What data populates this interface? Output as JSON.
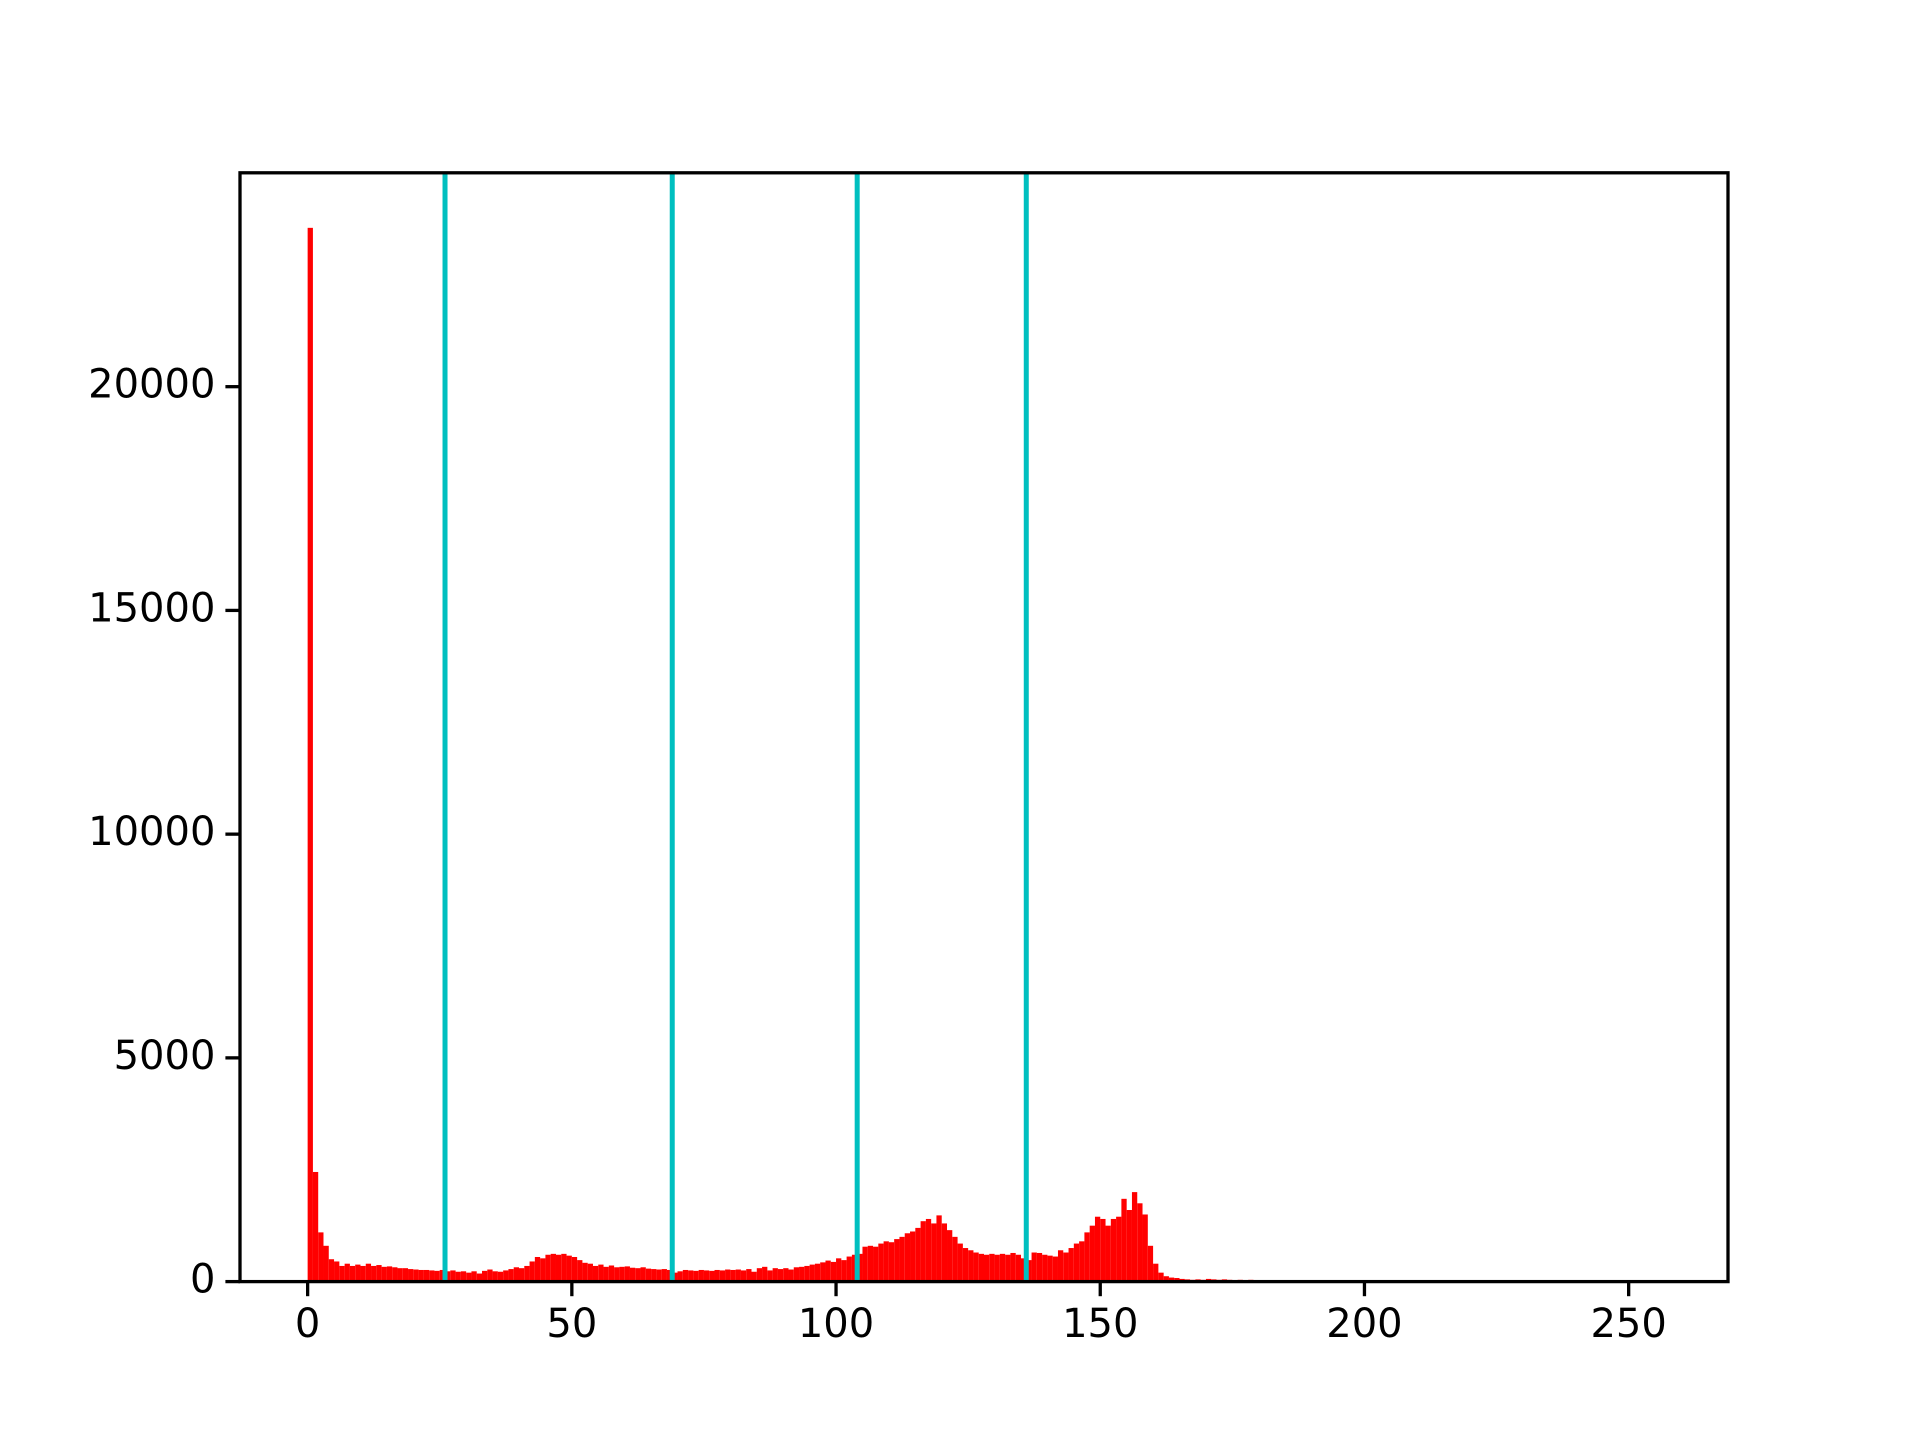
{
  "chart_data": {
    "type": "histogram",
    "bins": [
      0,
      1,
      2,
      3,
      4,
      5,
      6,
      7,
      8,
      9,
      10,
      11,
      12,
      13,
      14,
      15,
      16,
      17,
      18,
      19,
      20,
      21,
      22,
      23,
      24,
      25,
      26,
      27,
      28,
      29,
      30,
      31,
      32,
      33,
      34,
      35,
      36,
      37,
      38,
      39,
      40,
      41,
      42,
      43,
      44,
      45,
      46,
      47,
      48,
      49,
      50,
      51,
      52,
      53,
      54,
      55,
      56,
      57,
      58,
      59,
      60,
      61,
      62,
      63,
      64,
      65,
      66,
      67,
      68,
      69,
      70,
      71,
      72,
      73,
      74,
      75,
      76,
      77,
      78,
      79,
      80,
      81,
      82,
      83,
      84,
      85,
      86,
      87,
      88,
      89,
      90,
      91,
      92,
      93,
      94,
      95,
      96,
      97,
      98,
      99,
      100,
      101,
      102,
      103,
      104,
      105,
      106,
      107,
      108,
      109,
      110,
      111,
      112,
      113,
      114,
      115,
      116,
      117,
      118,
      119,
      120,
      121,
      122,
      123,
      124,
      125,
      126,
      127,
      128,
      129,
      130,
      131,
      132,
      133,
      134,
      135,
      136,
      137,
      138,
      139,
      140,
      141,
      142,
      143,
      144,
      145,
      146,
      147,
      148,
      149,
      150,
      151,
      152,
      153,
      154,
      155,
      156,
      157,
      158,
      159,
      160,
      161,
      162,
      163,
      164,
      165,
      166,
      167,
      168,
      169,
      170,
      171,
      172,
      173,
      174,
      175,
      176,
      177,
      178,
      179,
      180,
      181,
      182,
      183,
      184,
      185,
      186,
      187,
      188,
      189,
      190,
      191,
      192,
      193,
      194,
      195,
      196,
      197,
      198,
      199,
      200,
      201,
      202,
      203,
      204,
      205,
      206,
      207,
      208,
      209,
      210,
      211,
      212,
      213,
      214,
      215,
      216,
      217,
      218,
      219,
      220,
      221,
      222,
      223,
      224,
      225,
      226,
      227,
      228,
      229,
      230,
      231,
      232,
      233,
      234,
      235,
      236,
      237,
      238,
      239,
      240,
      241,
      242,
      243,
      244,
      245,
      246,
      247,
      248,
      249,
      250,
      251,
      252,
      253,
      254,
      255,
      256
    ],
    "values": [
      23550,
      2450,
      1100,
      800,
      500,
      450,
      350,
      400,
      350,
      380,
      350,
      400,
      350,
      370,
      330,
      340,
      320,
      300,
      300,
      280,
      270,
      260,
      260,
      250,
      240,
      260,
      230,
      250,
      220,
      230,
      200,
      230,
      180,
      240,
      270,
      230,
      220,
      250,
      280,
      320,
      300,
      350,
      450,
      550,
      520,
      600,
      620,
      600,
      620,
      580,
      550,
      480,
      420,
      400,
      350,
      380,
      330,
      360,
      320,
      330,
      340,
      310,
      300,
      320,
      290,
      280,
      270,
      280,
      260,
      200,
      230,
      260,
      250,
      240,
      260,
      250,
      240,
      260,
      250,
      270,
      260,
      270,
      250,
      280,
      220,
      300,
      330,
      250,
      300,
      280,
      300,
      270,
      320,
      330,
      350,
      380,
      400,
      430,
      470,
      440,
      520,
      480,
      560,
      600,
      620,
      780,
      800,
      780,
      850,
      900,
      880,
      950,
      1000,
      1080,
      1120,
      1200,
      1350,
      1400,
      1300,
      1480,
      1300,
      1150,
      1000,
      850,
      750,
      700,
      650,
      620,
      600,
      620,
      600,
      620,
      600,
      640,
      600,
      520,
      480,
      650,
      640,
      600,
      580,
      560,
      700,
      650,
      750,
      850,
      900,
      1100,
      1250,
      1450,
      1400,
      1250,
      1400,
      1450,
      1850,
      1600,
      2000,
      1750,
      1500,
      800,
      400,
      200,
      120,
      90,
      80,
      60,
      50,
      40,
      50,
      40,
      60,
      50,
      40,
      50,
      40,
      30,
      40,
      30,
      40,
      30,
      30,
      20,
      30,
      20,
      30,
      20,
      20,
      30,
      20,
      20,
      30,
      20,
      20,
      10,
      20,
      20,
      10,
      20,
      10,
      20,
      10,
      10,
      20,
      10,
      10,
      0,
      0,
      0,
      0,
      0,
      0,
      0,
      0,
      0,
      0,
      0,
      0,
      0,
      0,
      0,
      0,
      0,
      0,
      0,
      0,
      0,
      0,
      0,
      0,
      0,
      0,
      0,
      0,
      0,
      0,
      0,
      0,
      0,
      0,
      0,
      0,
      0,
      0,
      0,
      0,
      0,
      0,
      0,
      0,
      0,
      0,
      0,
      0,
      0,
      0,
      0
    ],
    "color": "#ff0000",
    "vlines": {
      "values": [
        26,
        69,
        104,
        136
      ],
      "color": "#00bfbf"
    },
    "xlim": [
      -12.8,
      268.8
    ],
    "xticks": [
      0,
      50,
      100,
      150,
      200,
      250
    ],
    "ylim": [
      0,
      24780
    ],
    "yticks": [
      0,
      5000,
      10000,
      15000,
      20000
    ]
  }
}
